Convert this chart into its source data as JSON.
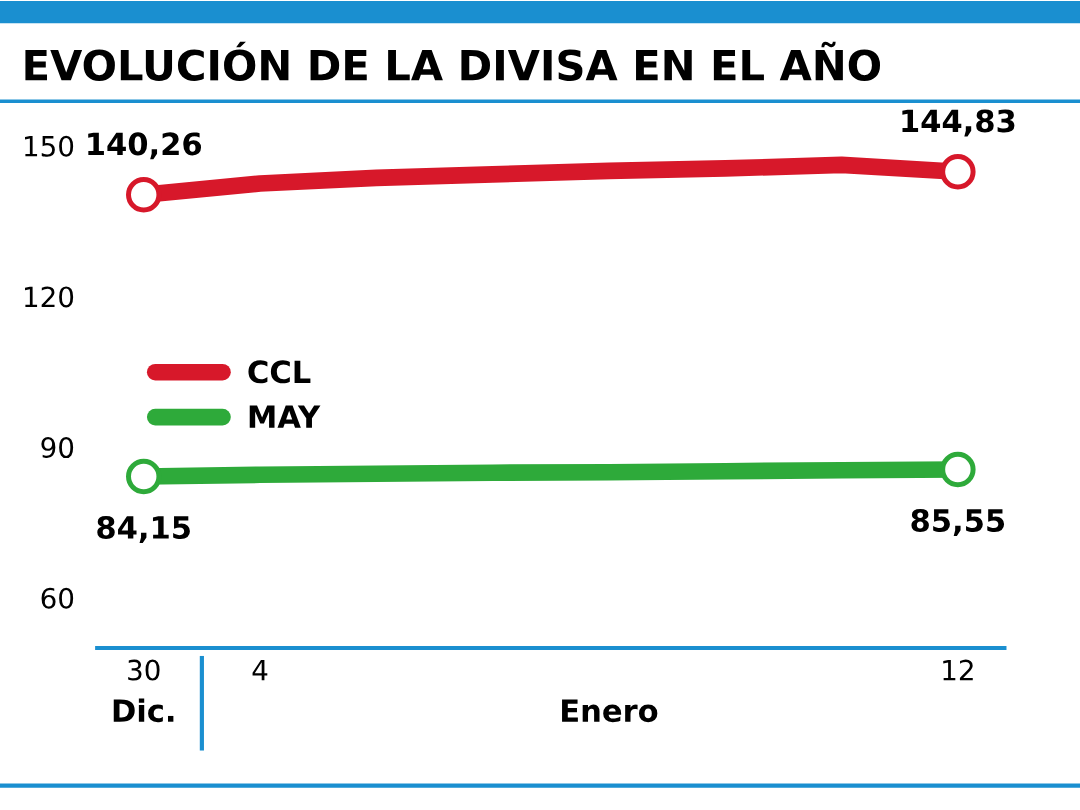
{
  "chart_data": {
    "type": "line",
    "title": "EVOLUCIÓN DE LA DIVISA EN EL AÑO",
    "categories": [
      "30",
      "4",
      null,
      null,
      null,
      null,
      null,
      "12"
    ],
    "series": [
      {
        "name": "CCL",
        "color": "#d7182a",
        "values": [
          140.26,
          142.5,
          143.6,
          144.3,
          145.0,
          145.5,
          146.2,
          144.83
        ],
        "value_labels": [
          "140,26",
          null,
          null,
          null,
          null,
          null,
          null,
          "144,83"
        ]
      },
      {
        "name": "MAY",
        "color": "#2eaa3a",
        "values": [
          84.15,
          84.5,
          84.7,
          84.9,
          85.0,
          85.2,
          85.4,
          85.55
        ],
        "value_labels": [
          "84,15",
          null,
          null,
          null,
          null,
          null,
          null,
          "85,55"
        ]
      }
    ],
    "ylim": [
      50,
      150
    ],
    "yticks": [
      60,
      90,
      120,
      150
    ],
    "annotations": [
      "Dic.",
      "Enero"
    ],
    "legend": "left",
    "line_style": "solid",
    "grid": false
  }
}
